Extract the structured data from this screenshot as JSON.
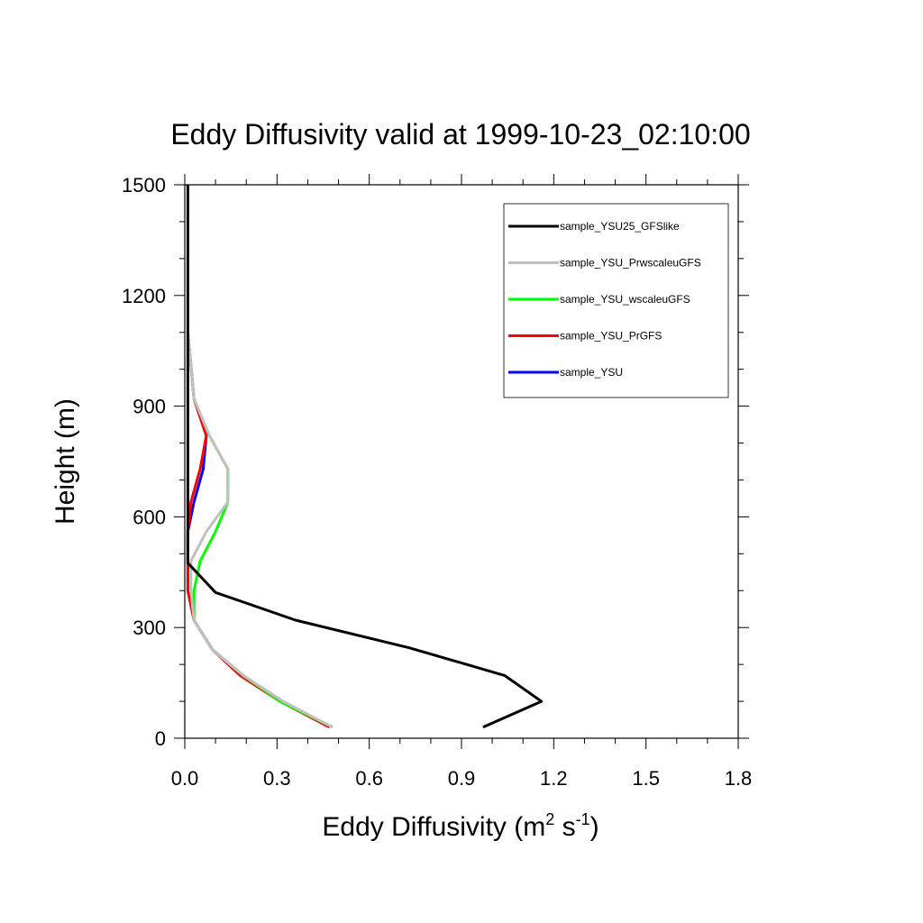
{
  "chart_data": {
    "type": "line",
    "title": "Eddy Diffusivity valid at 1999-10-23_02:10:00",
    "xlabel": {
      "main": "Eddy Diffusivity (m",
      "sup1": "2",
      "mid": " s",
      "sup2": "-1",
      "end": ")"
    },
    "ylabel": "Height (m)",
    "xlim": [
      0,
      1.8
    ],
    "ylim": [
      0,
      1500
    ],
    "x_ticks": [
      "0.0",
      "0.3",
      "0.6",
      "0.9",
      "1.2",
      "1.5",
      "1.8"
    ],
    "y_ticks": [
      "0",
      "300",
      "600",
      "900",
      "1200",
      "1500"
    ],
    "legend_position": "top-right",
    "series": [
      {
        "name": "sample_YSU",
        "color": "#0000ff",
        "points": [
          [
            0.48,
            30
          ],
          [
            0.31,
            100
          ],
          [
            0.19,
            170
          ],
          [
            0.09,
            240
          ],
          [
            0.03,
            320
          ],
          [
            0.01,
            400
          ],
          [
            0.01,
            480
          ],
          [
            0.01,
            560
          ],
          [
            0.03,
            640
          ],
          [
            0.06,
            730
          ],
          [
            0.07,
            820
          ],
          [
            0.03,
            920
          ],
          [
            0.02,
            1010
          ],
          [
            0.01,
            1100
          ]
        ]
      },
      {
        "name": "sample_YSU_PrGFS",
        "color": "#ff0000",
        "points": [
          [
            0.47,
            30
          ],
          [
            0.31,
            100
          ],
          [
            0.18,
            170
          ],
          [
            0.09,
            240
          ],
          [
            0.03,
            320
          ],
          [
            0.01,
            400
          ],
          [
            0.01,
            480
          ],
          [
            0.01,
            560
          ],
          [
            0.02,
            640
          ],
          [
            0.05,
            730
          ],
          [
            0.07,
            820
          ],
          [
            0.03,
            920
          ],
          [
            0.02,
            1010
          ],
          [
            0.01,
            1100
          ]
        ]
      },
      {
        "name": "sample_YSU_wscaleuGFS",
        "color": "#00ff00",
        "points": [
          [
            0.48,
            30
          ],
          [
            0.31,
            100
          ],
          [
            0.19,
            170
          ],
          [
            0.09,
            240
          ],
          [
            0.03,
            320
          ],
          [
            0.03,
            400
          ],
          [
            0.05,
            480
          ],
          [
            0.1,
            560
          ],
          [
            0.14,
            640
          ],
          [
            0.14,
            730
          ],
          [
            0.08,
            820
          ],
          [
            0.03,
            920
          ],
          [
            0.02,
            1010
          ],
          [
            0.01,
            1100
          ]
        ]
      },
      {
        "name": "sample_YSU_PrwscaleuGFS",
        "color": "#c0c0c0",
        "points": [
          [
            0.48,
            30
          ],
          [
            0.32,
            100
          ],
          [
            0.19,
            170
          ],
          [
            0.09,
            240
          ],
          [
            0.03,
            320
          ],
          [
            0.02,
            400
          ],
          [
            0.02,
            480
          ],
          [
            0.07,
            560
          ],
          [
            0.14,
            640
          ],
          [
            0.14,
            730
          ],
          [
            0.08,
            820
          ],
          [
            0.03,
            920
          ],
          [
            0.02,
            1010
          ],
          [
            0.01,
            1100
          ]
        ]
      },
      {
        "name": "sample_YSU25_GFSlike",
        "color": "#000000",
        "points": [
          [
            0.97,
            30
          ],
          [
            1.16,
            100
          ],
          [
            1.04,
            170
          ],
          [
            0.73,
            245
          ],
          [
            0.36,
            320
          ],
          [
            0.1,
            395
          ],
          [
            0.01,
            475
          ],
          [
            0.01,
            560
          ],
          [
            0.01,
            640
          ],
          [
            0.01,
            730
          ],
          [
            0.01,
            820
          ],
          [
            0.01,
            920
          ],
          [
            0.01,
            1010
          ],
          [
            0.01,
            1100
          ],
          [
            0.01,
            1200
          ],
          [
            0.01,
            1300
          ],
          [
            0.01,
            1400
          ],
          [
            0.01,
            1500
          ]
        ]
      }
    ],
    "legend_order": [
      "sample_YSU25_GFSlike",
      "sample_YSU_PrwscaleuGFS",
      "sample_YSU_wscaleuGFS",
      "sample_YSU_PrGFS",
      "sample_YSU"
    ]
  }
}
